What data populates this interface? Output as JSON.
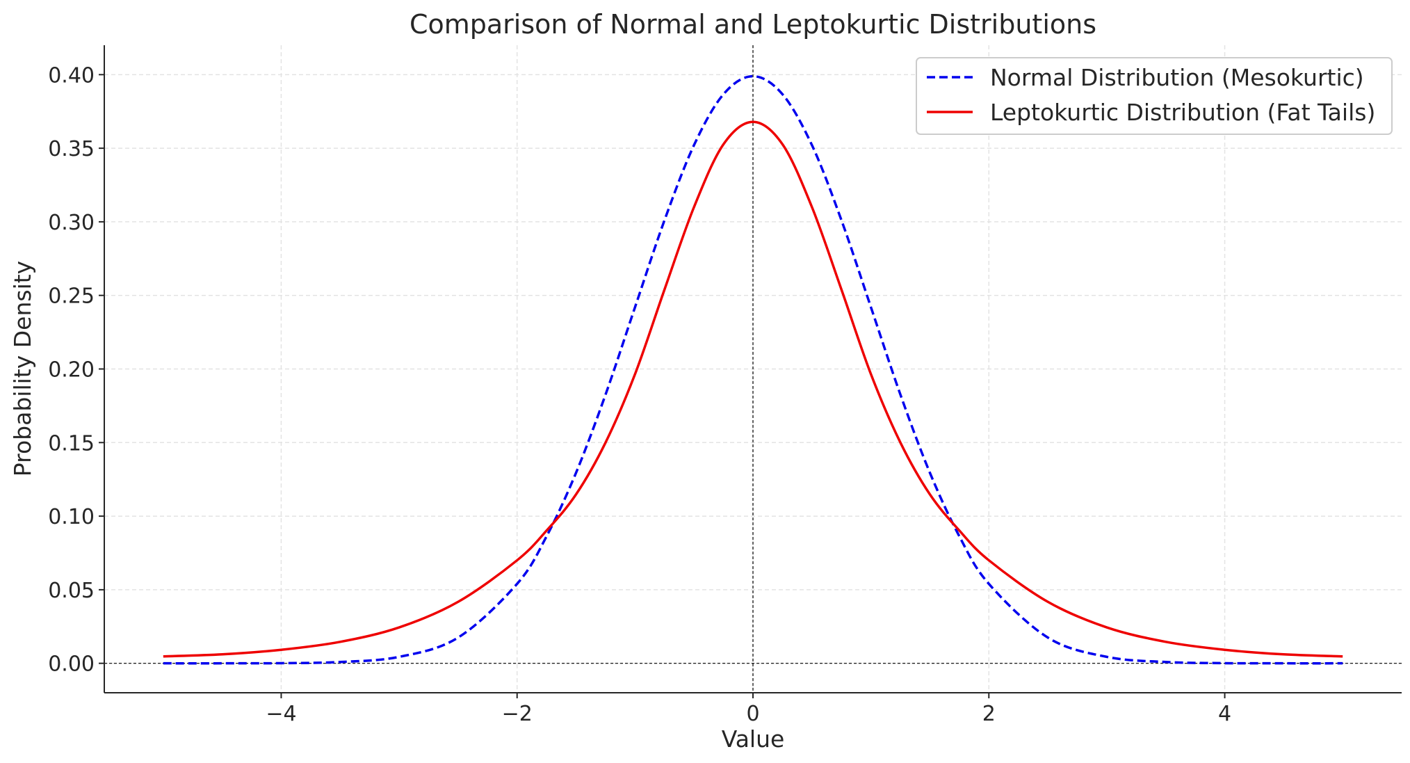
{
  "chart_data": {
    "type": "line",
    "title": "Comparison of Normal and Leptokurtic Distributions",
    "xlabel": "Value",
    "ylabel": "Probability Density",
    "xlim": [
      -5.5,
      5.5
    ],
    "ylim": [
      -0.02,
      0.42
    ],
    "x_ticks": [
      -4,
      -2,
      0,
      2,
      4
    ],
    "x_tick_labels": [
      "−4",
      "−2",
      "0",
      "2",
      "4"
    ],
    "y_ticks": [
      0.0,
      0.05,
      0.1,
      0.15,
      0.2,
      0.25,
      0.3,
      0.35,
      0.4
    ],
    "y_tick_labels": [
      "0.00",
      "0.05",
      "0.10",
      "0.15",
      "0.20",
      "0.25",
      "0.30",
      "0.35",
      "0.40"
    ],
    "grid": true,
    "legend_position": "top-right",
    "reference_lines": [
      {
        "orientation": "vertical",
        "value": 0
      },
      {
        "orientation": "horizontal",
        "value": 0
      }
    ],
    "series": [
      {
        "name": "Normal Distribution (Mesokurtic)",
        "color": "#0000ee",
        "style": "dashed",
        "x": [
          -5.0,
          -4.5,
          -4.0,
          -3.5,
          -3.0,
          -2.5,
          -2.0,
          -1.75,
          -1.5,
          -1.25,
          -1.0,
          -0.75,
          -0.5,
          -0.25,
          0.0,
          0.25,
          0.5,
          0.75,
          1.0,
          1.25,
          1.5,
          1.75,
          2.0,
          2.5,
          3.0,
          3.5,
          4.0,
          4.5,
          5.0
        ],
        "y": [
          0.0,
          0.0,
          0.0001,
          0.0009,
          0.0044,
          0.0175,
          0.054,
          0.0863,
          0.1295,
          0.1826,
          0.242,
          0.3011,
          0.3521,
          0.3867,
          0.3989,
          0.3867,
          0.3521,
          0.3011,
          0.242,
          0.1826,
          0.1295,
          0.0863,
          0.054,
          0.0175,
          0.0044,
          0.0009,
          0.0001,
          0.0,
          0.0
        ]
      },
      {
        "name": "Leptokurtic Distribution (Fat Tails)",
        "color": "#ee0000",
        "style": "solid",
        "x": [
          -5.0,
          -4.5,
          -4.0,
          -3.5,
          -3.0,
          -2.5,
          -2.0,
          -1.75,
          -1.5,
          -1.25,
          -1.0,
          -0.75,
          -0.5,
          -0.25,
          0.0,
          0.25,
          0.5,
          0.75,
          1.0,
          1.25,
          1.5,
          1.75,
          2.0,
          2.5,
          3.0,
          3.5,
          4.0,
          4.5,
          5.0
        ],
        "y": [
          0.0047,
          0.0061,
          0.0092,
          0.0146,
          0.0244,
          0.0418,
          0.07,
          0.0902,
          0.1148,
          0.15,
          0.1965,
          0.254,
          0.31,
          0.3527,
          0.3679,
          0.3527,
          0.31,
          0.254,
          0.1965,
          0.15,
          0.1148,
          0.0902,
          0.07,
          0.0418,
          0.0244,
          0.0146,
          0.0092,
          0.0061,
          0.0047
        ]
      }
    ]
  }
}
